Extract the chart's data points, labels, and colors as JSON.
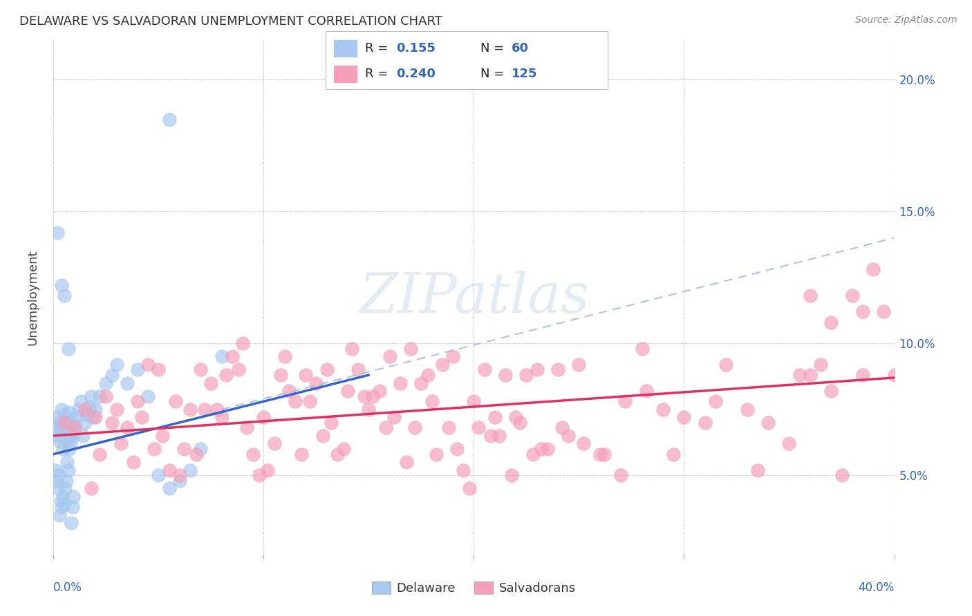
{
  "title": "DELAWARE VS SALVADORAN UNEMPLOYMENT CORRELATION CHART",
  "source": "Source: ZipAtlas.com",
  "ylabel": "Unemployment",
  "legend_entries": [
    {
      "label": "Delaware",
      "R": "0.155",
      "N": "60",
      "color": "#a8c8f0",
      "line_color": "#3366cc"
    },
    {
      "label": "Salvadorans",
      "R": "0.240",
      "N": "125",
      "color": "#f5a0b8",
      "line_color": "#e03060"
    }
  ],
  "watermark_text": "ZIPatlas",
  "background_color": "#ffffff",
  "grid_color": "#cccccc",
  "xmin": 0,
  "xmax": 40,
  "ymin": 2.0,
  "ymax": 21.5,
  "yticks": [
    5,
    10,
    15,
    20
  ],
  "ytick_labels": [
    "5.0%",
    "10.0%",
    "15.0%",
    "20.0%"
  ],
  "del_line_x0": 0.0,
  "del_line_y0": 5.8,
  "del_line_x1": 15.0,
  "del_line_y1": 8.8,
  "sal_line_x0": 0.0,
  "sal_line_y0": 6.5,
  "sal_line_x1": 40.0,
  "sal_line_y1": 8.7,
  "dash_line_x0": 8.0,
  "dash_line_y0": 7.5,
  "dash_line_x1": 40.0,
  "dash_line_y1": 14.0,
  "del_x": [
    0.1,
    0.15,
    0.2,
    0.25,
    0.3,
    0.35,
    0.4,
    0.45,
    0.5,
    0.55,
    0.6,
    0.65,
    0.7,
    0.75,
    0.8,
    0.85,
    0.9,
    0.95,
    1.0,
    1.1,
    1.2,
    1.3,
    1.4,
    1.5,
    1.6,
    1.7,
    1.8,
    1.9,
    2.0,
    2.2,
    2.5,
    2.8,
    3.0,
    3.5,
    4.0,
    4.5,
    5.0,
    5.5,
    6.0,
    6.5,
    7.0,
    8.0,
    0.1,
    0.15,
    0.2,
    0.25,
    0.3,
    0.35,
    0.4,
    0.45,
    0.5,
    0.55,
    0.6,
    0.65,
    0.7,
    0.75,
    0.8,
    0.85,
    0.9,
    0.95
  ],
  "del_y": [
    6.8,
    7.2,
    6.5,
    7.0,
    6.3,
    6.8,
    7.5,
    6.0,
    6.9,
    7.3,
    6.4,
    7.1,
    6.7,
    7.4,
    6.2,
    6.6,
    7.0,
    6.5,
    6.8,
    7.2,
    7.5,
    7.8,
    6.5,
    7.0,
    7.3,
    7.6,
    8.0,
    7.2,
    7.5,
    8.0,
    8.5,
    8.8,
    9.2,
    8.5,
    9.0,
    8.0,
    5.0,
    4.5,
    4.8,
    5.2,
    6.0,
    9.5,
    5.2,
    4.8,
    4.5,
    5.0,
    3.5,
    4.0,
    3.8,
    4.2,
    3.9,
    4.5,
    4.8,
    5.5,
    5.2,
    6.0,
    6.5,
    3.2,
    3.8,
    4.2
  ],
  "del_outlier_x": [
    5.5,
    0.2,
    0.4,
    0.5,
    0.7
  ],
  "del_outlier_y": [
    18.5,
    14.2,
    12.2,
    11.8,
    9.8
  ],
  "sal_x": [
    0.5,
    1.0,
    1.5,
    2.0,
    2.5,
    3.0,
    3.5,
    4.0,
    4.5,
    5.0,
    5.5,
    6.0,
    6.5,
    7.0,
    7.5,
    8.0,
    8.5,
    9.0,
    9.5,
    10.0,
    10.5,
    11.0,
    11.5,
    12.0,
    12.5,
    13.0,
    13.5,
    14.0,
    14.5,
    15.0,
    15.5,
    16.0,
    16.5,
    17.0,
    17.5,
    18.0,
    18.5,
    19.0,
    19.5,
    20.0,
    20.5,
    21.0,
    21.5,
    22.0,
    22.5,
    23.0,
    23.5,
    24.0,
    24.5,
    25.0,
    26.0,
    27.0,
    28.0,
    29.0,
    30.0,
    31.0,
    32.0,
    33.0,
    34.0,
    35.0,
    36.0,
    37.0,
    38.0,
    39.0,
    40.0,
    2.2,
    3.2,
    4.2,
    5.2,
    6.2,
    7.2,
    8.2,
    9.2,
    10.2,
    11.2,
    12.2,
    13.2,
    14.2,
    15.2,
    16.2,
    17.2,
    18.2,
    19.2,
    20.2,
    21.2,
    22.2,
    23.2,
    24.2,
    25.2,
    26.2,
    27.2,
    28.2,
    29.5,
    31.5,
    33.5,
    35.5,
    36.5,
    37.5,
    38.5,
    39.5,
    1.8,
    2.8,
    3.8,
    4.8,
    5.8,
    6.8,
    7.8,
    8.8,
    9.8,
    10.8,
    11.8,
    12.8,
    13.8,
    14.8,
    15.8,
    16.8,
    17.8,
    18.8,
    19.8,
    20.8,
    21.8,
    22.8,
    36.0,
    37.0,
    38.5
  ],
  "sal_y": [
    7.0,
    6.8,
    7.5,
    7.2,
    8.0,
    7.5,
    6.8,
    7.8,
    9.2,
    9.0,
    5.2,
    5.0,
    7.5,
    9.0,
    8.5,
    7.2,
    9.5,
    10.0,
    5.8,
    7.2,
    6.2,
    9.5,
    7.8,
    8.8,
    8.5,
    9.0,
    5.8,
    8.2,
    9.0,
    7.5,
    8.2,
    9.5,
    8.5,
    9.8,
    8.5,
    7.8,
    9.2,
    9.5,
    5.2,
    7.8,
    9.0,
    7.2,
    8.8,
    7.2,
    8.8,
    9.0,
    6.0,
    9.0,
    6.5,
    9.2,
    5.8,
    5.0,
    9.8,
    7.5,
    7.2,
    7.0,
    9.2,
    7.5,
    7.0,
    6.2,
    8.8,
    8.2,
    11.8,
    12.8,
    8.8,
    5.8,
    6.2,
    7.2,
    6.5,
    6.0,
    7.5,
    8.8,
    6.8,
    5.2,
    8.2,
    7.8,
    7.0,
    9.8,
    8.0,
    7.2,
    6.8,
    5.8,
    6.0,
    6.8,
    6.5,
    7.0,
    6.0,
    6.8,
    6.2,
    5.8,
    7.8,
    8.2,
    5.8,
    7.8,
    5.2,
    8.8,
    9.2,
    5.0,
    8.8,
    11.2,
    4.5,
    7.0,
    5.5,
    6.0,
    7.8,
    5.8,
    7.5,
    9.0,
    5.0,
    8.8,
    5.8,
    6.5,
    6.0,
    8.0,
    6.8,
    5.5,
    8.8,
    6.8,
    4.5,
    6.5,
    5.0,
    5.8,
    11.8,
    10.8,
    11.2
  ]
}
